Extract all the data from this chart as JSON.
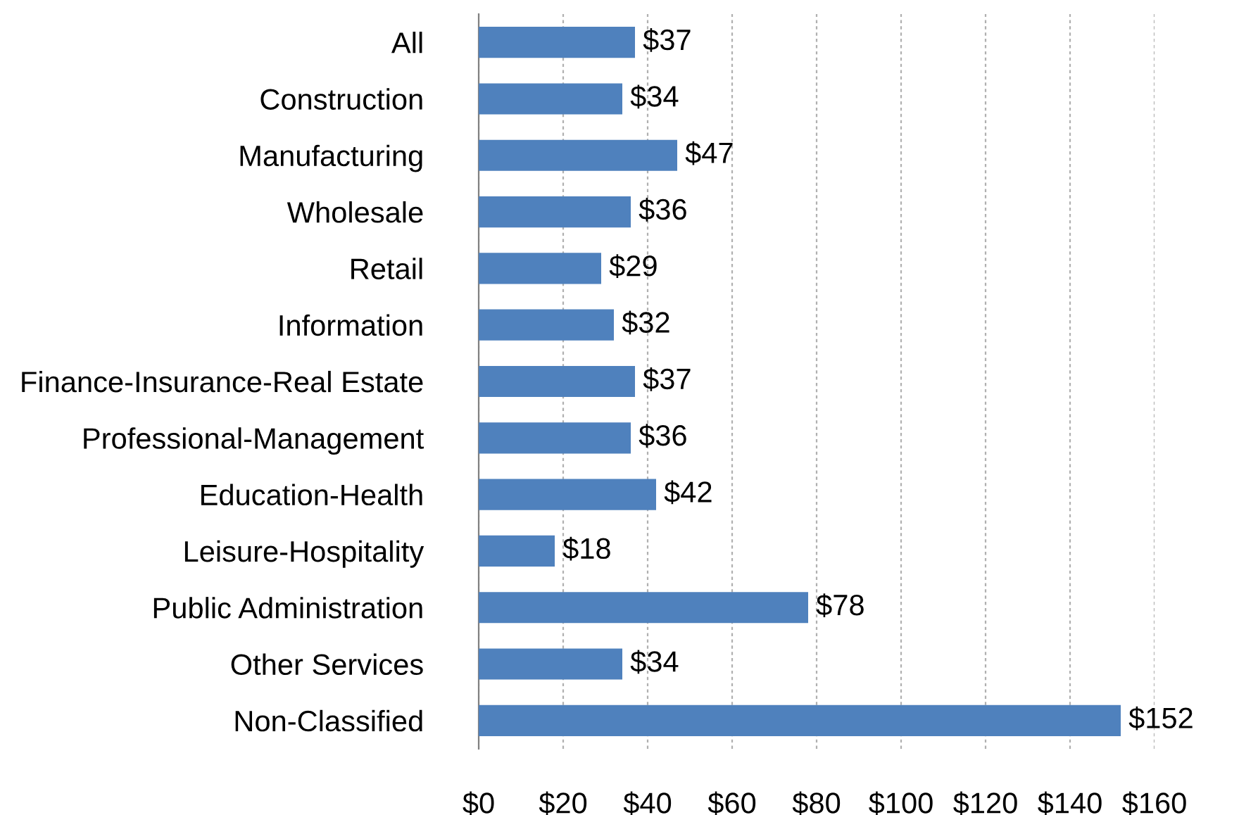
{
  "chart_data": {
    "type": "bar",
    "orientation": "horizontal",
    "categories": [
      "All",
      "Construction",
      "Manufacturing",
      "Wholesale",
      "Retail",
      "Information",
      "Finance-Insurance-Real Estate",
      "Professional-Management",
      "Education-Health",
      "Leisure-Hospitality",
      "Public Administration",
      "Other Services",
      "Non-Classified"
    ],
    "values": [
      37,
      34,
      47,
      36,
      29,
      32,
      37,
      36,
      42,
      18,
      78,
      34,
      152
    ],
    "value_labels": [
      "$37",
      "$34",
      "$47",
      "$36",
      "$29",
      "$32",
      "$37",
      "$36",
      "$42",
      "$18",
      "$78",
      "$34",
      "$152"
    ],
    "color": "#4f81bd",
    "xlim": [
      0,
      160
    ],
    "xticks": [
      {
        "value": 0,
        "label": "$0"
      },
      {
        "value": 20,
        "label": "$20"
      },
      {
        "value": 40,
        "label": "$40"
      },
      {
        "value": 60,
        "label": "$60"
      },
      {
        "value": 80,
        "label": "$80"
      },
      {
        "value": 100,
        "label": "$100"
      },
      {
        "value": 120,
        "label": "$120"
      },
      {
        "value": 140,
        "label": "$140"
      },
      {
        "value": 160,
        "label": "$160"
      }
    ],
    "grid": "x"
  }
}
